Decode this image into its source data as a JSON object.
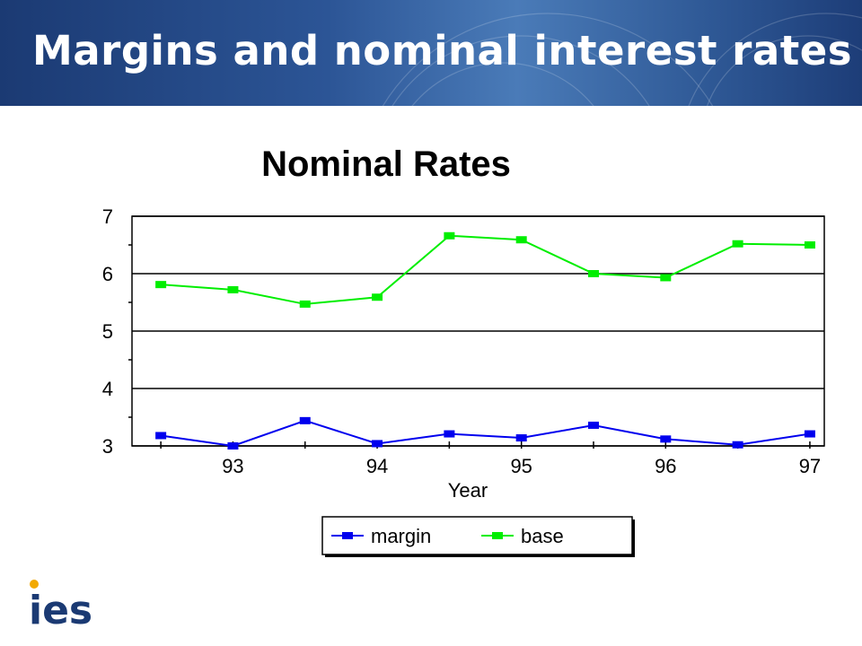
{
  "slide": {
    "title": "Margins and nominal interest rates"
  },
  "logo": {
    "text": "ies",
    "text_color": "#1b3a73",
    "dot_color": "#f2a900"
  },
  "colors": {
    "banner_dark": "#1b3a73",
    "banner_light": "#4a7bb8",
    "margin_series": "#0000ee",
    "base_series": "#00ee00"
  },
  "chart_data": {
    "type": "line",
    "title": "Nominal Rates",
    "xlabel": "Year",
    "ylabel": "",
    "ylim": [
      3,
      7
    ],
    "yticks": [
      3,
      4,
      5,
      6,
      7
    ],
    "xlim": [
      92.3,
      97.1
    ],
    "xticks": [
      93,
      94,
      95,
      96,
      97
    ],
    "grid": "horizontal",
    "legend_position": "bottom",
    "x": [
      92.5,
      93,
      93.5,
      94,
      94.5,
      95,
      95.5,
      96,
      96.5,
      97
    ],
    "series": [
      {
        "name": "margin",
        "color": "#0000ee",
        "values": [
          3.18,
          3.0,
          3.44,
          3.04,
          3.21,
          3.14,
          3.36,
          3.12,
          3.02,
          3.21
        ]
      },
      {
        "name": "base",
        "color": "#00ee00",
        "values": [
          5.81,
          5.72,
          5.47,
          5.59,
          6.66,
          6.59,
          6.0,
          5.93,
          6.52,
          6.5
        ]
      }
    ]
  }
}
